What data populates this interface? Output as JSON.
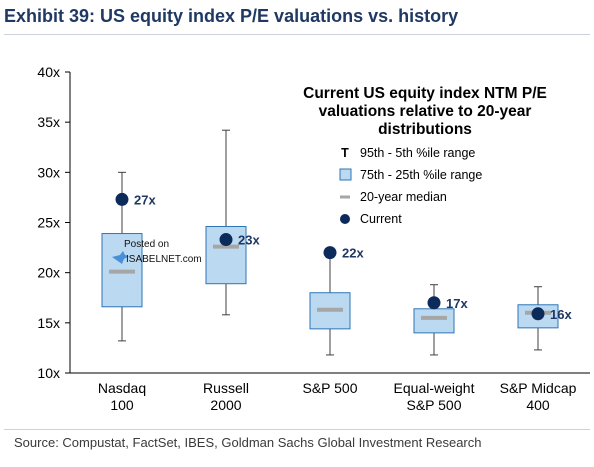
{
  "header": {
    "title": "Exhibit 39: US equity index P/E valuations vs. history"
  },
  "footer": {
    "source": "Source: Compustat, FactSet, IBES, Goldman Sachs Global Investment Research"
  },
  "watermark": {
    "line1": "Posted on",
    "line2": "ISABELNET.com"
  },
  "colors": {
    "box_fill": "#bcd9f2",
    "box_stroke": "#2e75b6",
    "median": "#a6a6a6",
    "whisker": "#404040",
    "current": "#0d2b5a",
    "label": "#1f3864"
  },
  "chart_data": {
    "type": "boxplot",
    "title": "Current US equity index NTM P/E valuations relative to 20-year distributions",
    "title_lines": [
      "Current US equity index NTM P/E",
      "valuations relative to 20-year",
      "distributions"
    ],
    "y_ticks": [
      {
        "value": 10,
        "label": "10x"
      },
      {
        "value": 15,
        "label": "15x"
      },
      {
        "value": 20,
        "label": "20x"
      },
      {
        "value": 25,
        "label": "25x"
      },
      {
        "value": 30,
        "label": "30x"
      },
      {
        "value": 35,
        "label": "35x"
      },
      {
        "value": 40,
        "label": "40x"
      }
    ],
    "ylim": [
      10,
      40
    ],
    "grid": false,
    "legend_position": "top-right",
    "legend": [
      {
        "symbol": "T",
        "label": "95th - 5th %ile range"
      },
      {
        "symbol": "box",
        "label": "75th - 25th %ile range"
      },
      {
        "symbol": "dash",
        "label": "20-year median"
      },
      {
        "symbol": "dot",
        "label": "Current"
      }
    ],
    "categories": [
      {
        "line1": "Nasdaq",
        "line2": "100",
        "p5": 13.2,
        "p25": 16.6,
        "median": 20.1,
        "p75": 23.9,
        "p95": 30.0,
        "current": 27.3,
        "current_label": "27x"
      },
      {
        "line1": "Russell",
        "line2": "2000",
        "p5": 15.8,
        "p25": 18.9,
        "median": 22.6,
        "p75": 24.6,
        "p95": 34.2,
        "current": 23.3,
        "current_label": "23x"
      },
      {
        "line1": "S&P 500",
        "line2": "",
        "p5": 11.8,
        "p25": 14.4,
        "median": 16.3,
        "p75": 18.0,
        "p95": 22.0,
        "current": 22.0,
        "current_label": "22x"
      },
      {
        "line1": "Equal-weight",
        "line2": "S&P 500",
        "p5": 11.8,
        "p25": 14.0,
        "median": 15.5,
        "p75": 16.4,
        "p95": 18.8,
        "current": 17.0,
        "current_label": "17x"
      },
      {
        "line1": "S&P Midcap",
        "line2": "400",
        "p5": 12.3,
        "p25": 14.5,
        "median": 16.0,
        "p75": 16.8,
        "p95": 18.6,
        "current": 15.9,
        "current_label": "16x"
      }
    ]
  }
}
